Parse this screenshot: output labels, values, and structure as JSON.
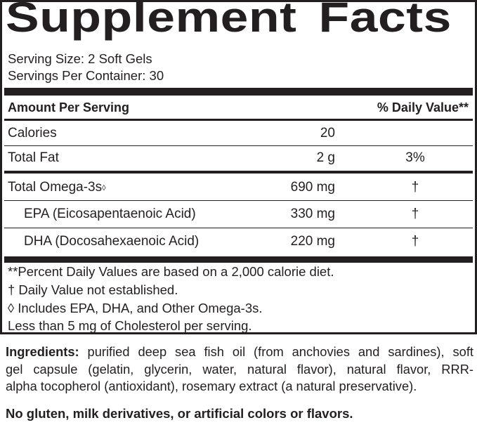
{
  "panel": {
    "title_word1": "Supplement",
    "title_word2": "Facts",
    "serving_size": "Serving Size: 2 Soft Gels",
    "servings_per_container": "Servings Per Container: 30",
    "header_amount": "Amount Per Serving",
    "header_dv": "% Daily Value**",
    "rows": [
      {
        "name": "Calories",
        "amount": "20",
        "dv": ""
      },
      {
        "name": "Total Fat",
        "amount": "2 g",
        "dv": "3%"
      },
      {
        "name": "Total Omega-3s",
        "mark": "◊",
        "amount": "690 mg",
        "dv": "†"
      },
      {
        "name": "EPA (Eicosapentaenoic Acid)",
        "amount": "330 mg",
        "dv": "†"
      },
      {
        "name": "DHA (Docosahexaenoic Acid)",
        "amount": "220 mg",
        "dv": "†"
      }
    ],
    "footnotes": [
      "**Percent Daily Values are based on a 2,000 calorie diet.",
      "† Daily Value not established.",
      "◊ Includes EPA, DHA, and Other Omega-3s.",
      "Less than 5 mg of Cholesterol per serving."
    ]
  },
  "ingredients": {
    "label": "Ingredients:",
    "line1": " purified deep sea fish oil (from anchovies and sardines), soft",
    "line2": "gel capsule (gelatin, glycerin, water, natural flavor), natural flavor, RRR-",
    "line3": "alpha tocopherol (antioxidant), rosemary extract (a natural preservative)."
  },
  "free_from": "No gluten, milk derivatives, or artificial colors or flavors."
}
